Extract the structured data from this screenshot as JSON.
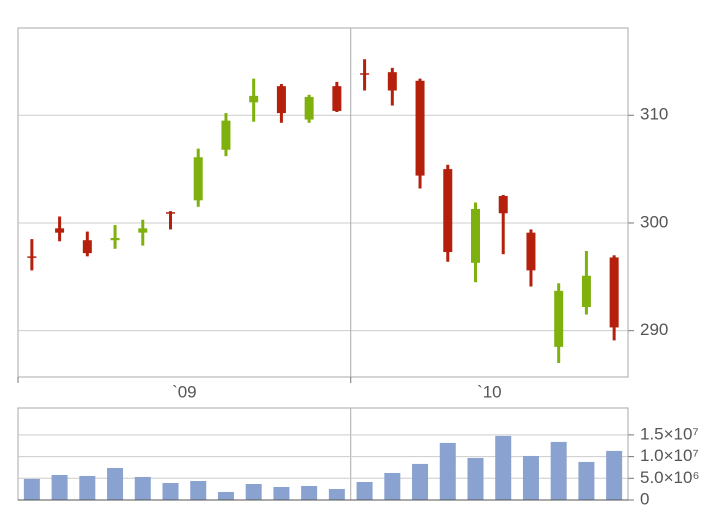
{
  "chart_data": [
    {
      "type": "candlestick",
      "categories": [
        null,
        null,
        null,
        null,
        null,
        null,
        null,
        null,
        null,
        null,
        null,
        null,
        null,
        null,
        null,
        null,
        null,
        null,
        null,
        null,
        null,
        null
      ],
      "periods": [
        {
          "label": "`09",
          "count": 12
        },
        {
          "label": "`10",
          "count": 10
        }
      ],
      "open": [
        296.9,
        299.5,
        298.4,
        298.4,
        299.1,
        301.0,
        302.1,
        306.8,
        311.2,
        312.7,
        309.6,
        312.7,
        313.9,
        314.0,
        313.2,
        305.0,
        296.3,
        302.5,
        299.1,
        288.5,
        292.2,
        296.8
      ],
      "high": [
        298.5,
        300.6,
        299.2,
        299.8,
        300.3,
        301.1,
        306.9,
        310.2,
        313.4,
        312.9,
        311.9,
        313.1,
        315.2,
        314.4,
        313.4,
        305.4,
        301.9,
        302.6,
        299.4,
        294.4,
        297.4,
        297.0
      ],
      "low": [
        295.6,
        298.3,
        296.9,
        297.6,
        297.9,
        299.4,
        301.5,
        306.2,
        309.4,
        309.3,
        309.3,
        310.3,
        312.3,
        310.9,
        303.2,
        296.4,
        294.5,
        297.1,
        294.1,
        287.0,
        291.5,
        289.1
      ],
      "close": [
        296.8,
        299.1,
        297.2,
        298.6,
        299.5,
        300.9,
        306.1,
        309.5,
        311.8,
        310.2,
        311.7,
        310.4,
        313.8,
        312.3,
        304.4,
        297.3,
        301.3,
        300.9,
        295.6,
        293.7,
        295.1,
        290.3
      ],
      "up_color": "#7fb10e",
      "down_color": "#b4200c",
      "ylim": [
        285.7,
        318.1
      ],
      "yticks": [
        290,
        300,
        310
      ],
      "grid": true
    },
    {
      "type": "bar",
      "values": [
        4850000,
        5770000,
        5540000,
        7380000,
        5310000,
        3920000,
        4380000,
        1850000,
        3690000,
        3000000,
        3230000,
        2540000,
        4150000,
        6230000,
        8310000,
        13150000,
        9690000,
        14770000,
        10150000,
        13380000,
        8770000,
        11310000
      ],
      "color": "#8aa2cf",
      "ylim": [
        0,
        21200000
      ],
      "yticks": [
        0,
        {
          "value": 5000000,
          "label": "5.0×10⁶"
        },
        {
          "value": 10000000,
          "label": "1.0×10⁷"
        },
        {
          "value": 15000000,
          "label": "1.5×10⁷"
        }
      ],
      "grid": true
    }
  ]
}
